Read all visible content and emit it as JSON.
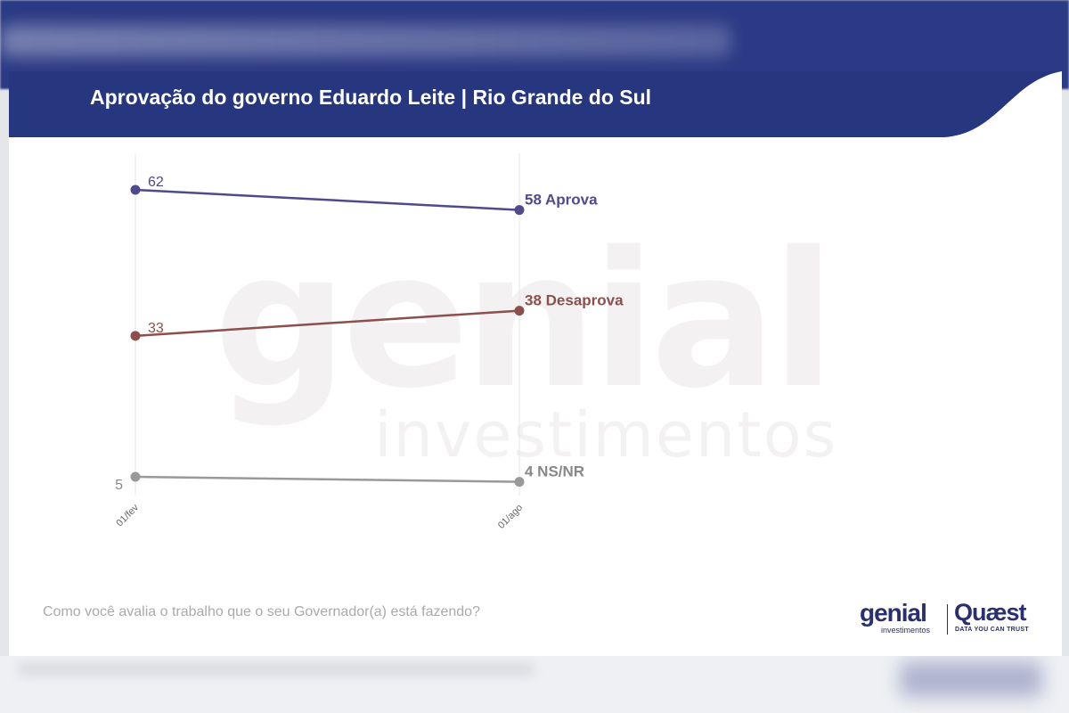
{
  "header": {
    "title": "Aprovação do governo Eduardo Leite | Rio Grande do Sul",
    "background_color": "#26367f"
  },
  "chart_data": {
    "type": "line",
    "categories": [
      "01/fev",
      "01/ago"
    ],
    "series": [
      {
        "name": "Aprova",
        "values": [
          62,
          58
        ],
        "color": "#4e4a8c"
      },
      {
        "name": "Desaprova",
        "values": [
          33,
          38
        ],
        "color": "#8c4f4c"
      },
      {
        "name": "NS/NR",
        "values": [
          5,
          4
        ],
        "color": "#999999"
      }
    ],
    "value_labels": {
      "start": [
        "62",
        "33",
        "5"
      ],
      "end": [
        "58 Aprova",
        "38 Desaprova",
        "4 NS/NR"
      ]
    },
    "grid": "vertical",
    "xlabel": "",
    "ylabel": ""
  },
  "watermark": {
    "main": "genial",
    "sub": "investimentos"
  },
  "footer": {
    "question": "Como você avalia o trabalho que o seu Governador(a) está fazendo?"
  },
  "logos": {
    "genial": "genial",
    "genial_sub": "investimentos",
    "quaest": "Quæst",
    "quaest_tagline": "DATA YOU CAN TRUST"
  }
}
